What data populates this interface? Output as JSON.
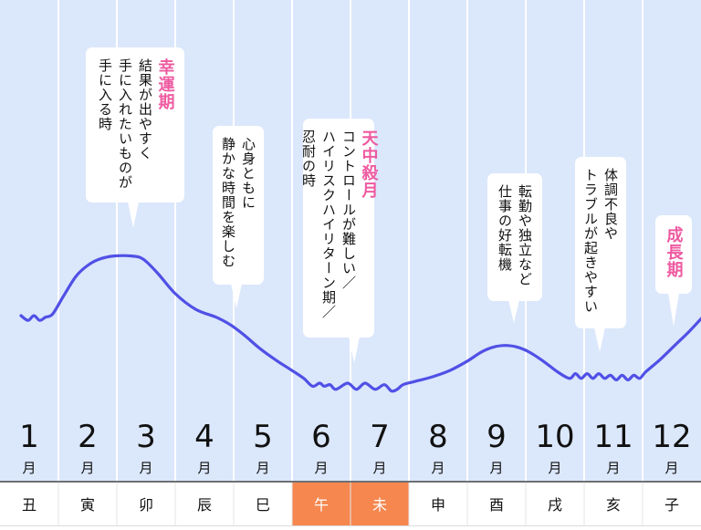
{
  "colors": {
    "background": "#dbe7fb",
    "gridline": "#ffffff",
    "curve": "#5050e6",
    "highlight": "#f5874f",
    "pink_title": "#ee5aa0",
    "text": "#111111"
  },
  "chart_data": {
    "type": "line",
    "x": [
      1,
      2,
      3,
      4,
      5,
      6,
      7,
      8,
      9,
      10,
      11,
      12
    ],
    "month_numbers": [
      "1",
      "2",
      "3",
      "4",
      "5",
      "6",
      "7",
      "8",
      "9",
      "10",
      "11",
      "12"
    ],
    "month_unit": "月",
    "zodiac": [
      "丑",
      "寅",
      "卯",
      "辰",
      "巳",
      "午",
      "未",
      "申",
      "酉",
      "戌",
      "亥",
      "子"
    ],
    "highlighted_zodiac": [
      5,
      6
    ],
    "ylim": [
      0,
      100
    ],
    "axis_values_shown": false,
    "curve": [
      [
        0.86,
        50
      ],
      [
        0.98,
        47
      ],
      [
        1.08,
        50
      ],
      [
        1.18,
        47
      ],
      [
        1.28,
        49
      ],
      [
        1.4,
        51
      ],
      [
        1.58,
        62
      ],
      [
        1.8,
        75
      ],
      [
        2.0,
        82
      ],
      [
        2.2,
        86
      ],
      [
        2.45,
        88
      ],
      [
        2.75,
        88
      ],
      [
        2.95,
        86
      ],
      [
        3.2,
        77
      ],
      [
        3.5,
        64
      ],
      [
        3.85,
        54
      ],
      [
        4.2,
        49
      ],
      [
        4.45,
        44
      ],
      [
        4.7,
        37
      ],
      [
        4.95,
        29
      ],
      [
        5.25,
        21
      ],
      [
        5.5,
        15
      ],
      [
        5.7,
        10
      ],
      [
        5.85,
        5
      ],
      [
        5.97,
        7
      ],
      [
        6.05,
        5
      ],
      [
        6.15,
        6
      ],
      [
        6.25,
        3
      ],
      [
        6.45,
        7
      ],
      [
        6.6,
        3
      ],
      [
        6.75,
        7
      ],
      [
        6.92,
        3
      ],
      [
        7.08,
        6
      ],
      [
        7.2,
        2
      ],
      [
        7.3,
        3
      ],
      [
        7.4,
        6
      ],
      [
        7.6,
        8
      ],
      [
        7.9,
        11
      ],
      [
        8.2,
        15
      ],
      [
        8.5,
        21
      ],
      [
        8.75,
        27
      ],
      [
        8.95,
        30
      ],
      [
        9.15,
        31
      ],
      [
        9.35,
        30
      ],
      [
        9.55,
        27
      ],
      [
        9.8,
        21
      ],
      [
        10.05,
        14
      ],
      [
        10.25,
        10
      ],
      [
        10.35,
        13
      ],
      [
        10.45,
        10
      ],
      [
        10.55,
        13
      ],
      [
        10.65,
        10
      ],
      [
        10.75,
        13
      ],
      [
        10.85,
        10
      ],
      [
        10.95,
        12
      ],
      [
        11.05,
        9
      ],
      [
        11.15,
        12
      ],
      [
        11.25,
        9
      ],
      [
        11.35,
        12
      ],
      [
        11.45,
        10
      ],
      [
        11.55,
        14
      ],
      [
        11.8,
        22
      ],
      [
        12.05,
        31
      ],
      [
        12.3,
        40
      ],
      [
        12.6,
        52
      ]
    ],
    "annotations": [
      {
        "title": "幸運期",
        "lines": [
          "結果が出やすく",
          "手に入れたいものが",
          "手に入る時"
        ]
      },
      {
        "title": "",
        "lines": [
          "心身ともに",
          "静かな時間を楽しむ"
        ]
      },
      {
        "title": "天中殺月",
        "lines": [
          "コントロールが難しい／",
          "ハイリスクハイリターン期／",
          "忍耐の時"
        ]
      },
      {
        "title": "",
        "lines": [
          "転勤や独立など",
          "仕事の好転機"
        ]
      },
      {
        "title": "",
        "lines": [
          "体調不良や",
          "トラブルが起きやすい"
        ]
      },
      {
        "title": "成長期",
        "lines": []
      }
    ]
  }
}
